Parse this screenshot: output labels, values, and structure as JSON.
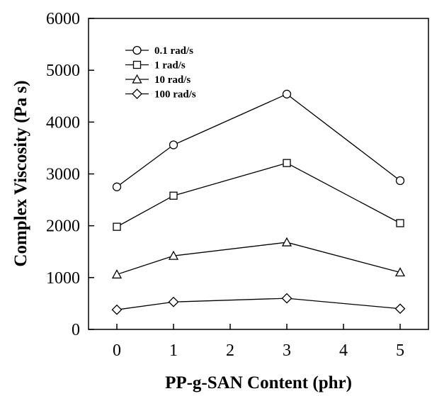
{
  "chart_data": {
    "type": "line",
    "x": [
      0,
      1,
      3,
      5
    ],
    "xlabel": "PP-g-SAN Content (phr)",
    "ylabel": "Complex Viscosity (Pa s)",
    "xlim": [
      -0.5,
      5.5
    ],
    "ylim": [
      0,
      6000
    ],
    "xticks": [
      0,
      1,
      2,
      3,
      4,
      5
    ],
    "yticks": [
      0,
      1000,
      2000,
      3000,
      4000,
      5000,
      6000
    ],
    "x_tick_labels": [
      "0",
      "1",
      "2",
      "3",
      "4",
      "5"
    ],
    "y_tick_labels": [
      "0",
      "1000",
      "2000",
      "3000",
      "4000",
      "5000",
      "6000"
    ],
    "grid": false,
    "legend_position": "top-left",
    "series": [
      {
        "name": "0.1 rad/s",
        "marker": "circle",
        "values": [
          2750,
          3560,
          4540,
          2870
        ]
      },
      {
        "name": "1 rad/s",
        "marker": "square",
        "values": [
          1980,
          2580,
          3210,
          2050
        ]
      },
      {
        "name": "10 rad/s",
        "marker": "triangle",
        "values": [
          1060,
          1420,
          1680,
          1100
        ]
      },
      {
        "name": "100 rad/s",
        "marker": "diamond",
        "values": [
          380,
          530,
          600,
          400
        ]
      }
    ],
    "colors": {
      "line": "#000000",
      "marker_fill": "#ffffff"
    }
  }
}
